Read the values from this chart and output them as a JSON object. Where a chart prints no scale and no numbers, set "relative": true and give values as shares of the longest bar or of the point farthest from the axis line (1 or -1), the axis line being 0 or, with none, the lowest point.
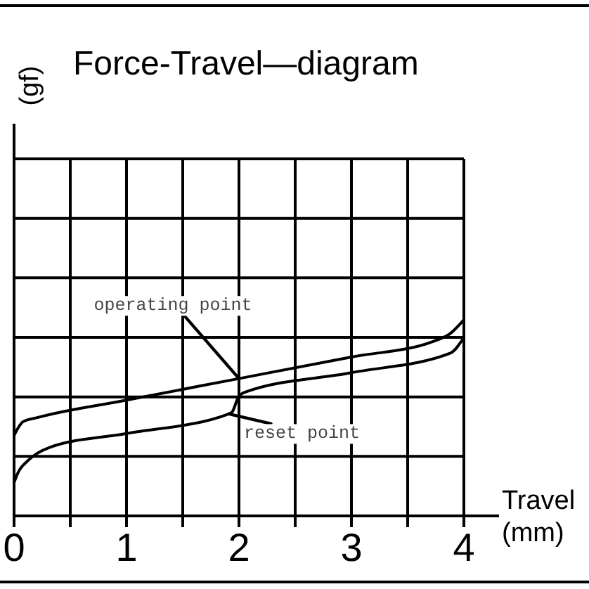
{
  "chart_data": {
    "type": "line",
    "title": "Force-Travel—diagram",
    "xlabel": "Travel (mm)",
    "relative": true,
    "xlim": [
      0,
      4
    ],
    "xticks": [
      0,
      {
        "value": 0.5,
        "label": null
      },
      1,
      {
        "value": 1.5,
        "label": null
      },
      2,
      {
        "value": 2.5,
        "label": null
      },
      3,
      {
        "value": 3.5,
        "label": null
      },
      4
    ],
    "grid": true,
    "series": [
      {
        "color": "#000000",
        "x": [
          0,
          0.08,
          0.2,
          1.0,
          2.0,
          3.0,
          3.73,
          3.88,
          4.0
        ],
        "values": [
          0.41,
          0.48,
          0.5,
          0.59,
          0.7,
          0.81,
          0.89,
          0.93,
          1.0
        ]
      },
      {
        "color": "#000000",
        "x": [
          0,
          0.035,
          0.12,
          0.32,
          1.0,
          1.91,
          1.94,
          1.99,
          2.05,
          3.0,
          3.88,
          4.0
        ],
        "values": [
          0.17,
          0.22,
          0.28,
          0.35,
          0.42,
          0.52,
          0.53,
          0.6,
          0.63,
          0.73,
          0.83,
          0.91
        ]
      }
    ],
    "annotations": [
      {
        "text": "operating point",
        "x": 2.0,
        "y": 0.7
      },
      {
        "text": "reset point",
        "x": 1.91,
        "y": 0.52
      },
      "(gf)"
    ]
  }
}
